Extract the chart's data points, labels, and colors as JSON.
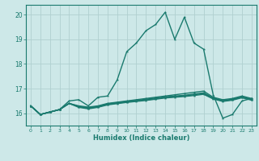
{
  "xlabel": "Humidex (Indice chaleur)",
  "xlim": [
    -0.5,
    23.5
  ],
  "ylim": [
    15.5,
    20.4
  ],
  "yticks": [
    16,
    17,
    18,
    19,
    20
  ],
  "xticks": [
    0,
    1,
    2,
    3,
    4,
    5,
    6,
    7,
    8,
    9,
    10,
    11,
    12,
    13,
    14,
    15,
    16,
    17,
    18,
    19,
    20,
    21,
    22,
    23
  ],
  "bg_color": "#cde8e8",
  "grid_color": "#b0d0d0",
  "line_color": "#1a7a6e",
  "lines": [
    [
      16.3,
      15.95,
      16.05,
      16.15,
      16.5,
      16.55,
      16.3,
      16.65,
      16.7,
      17.35,
      18.5,
      18.85,
      19.35,
      19.6,
      20.1,
      19.0,
      19.9,
      18.85,
      18.6,
      16.75,
      15.8,
      15.95,
      16.5,
      16.6
    ],
    [
      16.3,
      15.95,
      16.05,
      16.15,
      16.4,
      16.3,
      16.25,
      16.3,
      16.4,
      16.45,
      16.5,
      16.55,
      16.6,
      16.65,
      16.7,
      16.75,
      16.8,
      16.85,
      16.9,
      16.65,
      16.55,
      16.6,
      16.7,
      16.6
    ],
    [
      16.3,
      15.95,
      16.05,
      16.15,
      16.4,
      16.28,
      16.22,
      16.28,
      16.38,
      16.43,
      16.48,
      16.52,
      16.57,
      16.62,
      16.67,
      16.7,
      16.73,
      16.78,
      16.83,
      16.62,
      16.52,
      16.57,
      16.67,
      16.57
    ],
    [
      16.3,
      15.95,
      16.05,
      16.15,
      16.4,
      16.26,
      16.2,
      16.26,
      16.36,
      16.41,
      16.46,
      16.5,
      16.54,
      16.59,
      16.64,
      16.67,
      16.7,
      16.75,
      16.8,
      16.6,
      16.5,
      16.55,
      16.65,
      16.55
    ],
    [
      16.3,
      15.95,
      16.05,
      16.15,
      16.4,
      16.24,
      16.18,
      16.24,
      16.34,
      16.39,
      16.44,
      16.48,
      16.52,
      16.57,
      16.62,
      16.65,
      16.68,
      16.72,
      16.77,
      16.58,
      16.48,
      16.53,
      16.63,
      16.53
    ]
  ]
}
